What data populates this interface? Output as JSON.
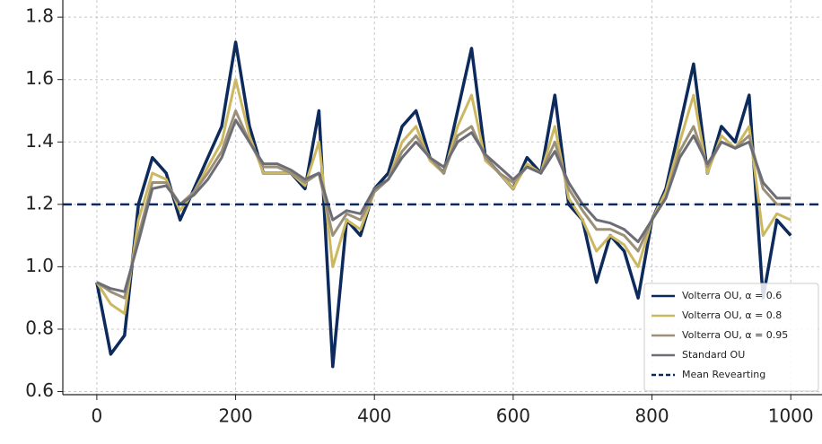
{
  "chart_data": {
    "type": "line",
    "x": [
      0,
      20,
      40,
      60,
      80,
      100,
      120,
      140,
      160,
      180,
      200,
      220,
      240,
      260,
      280,
      300,
      320,
      340,
      360,
      380,
      400,
      420,
      440,
      460,
      480,
      500,
      520,
      540,
      560,
      580,
      600,
      620,
      640,
      660,
      680,
      700,
      720,
      740,
      760,
      780,
      800,
      820,
      840,
      860,
      880,
      900,
      920,
      940,
      960,
      980,
      1000
    ],
    "series": [
      {
        "name": "Volterra OU, α = 0.6",
        "color": "#0d2a5c",
        "values": [
          0.95,
          0.72,
          0.78,
          1.2,
          1.35,
          1.3,
          1.15,
          1.25,
          1.35,
          1.45,
          1.72,
          1.45,
          1.3,
          1.3,
          1.3,
          1.25,
          1.5,
          0.68,
          1.15,
          1.1,
          1.25,
          1.3,
          1.45,
          1.5,
          1.35,
          1.3,
          1.5,
          1.7,
          1.35,
          1.3,
          1.25,
          1.35,
          1.3,
          1.55,
          1.2,
          1.15,
          0.95,
          1.1,
          1.05,
          0.9,
          1.15,
          1.25,
          1.45,
          1.65,
          1.3,
          1.45,
          1.4,
          1.55,
          0.9,
          1.15,
          1.1
        ]
      },
      {
        "name": "Volterra OU, α = 0.8",
        "color": "#cdb862",
        "values": [
          0.95,
          0.88,
          0.85,
          1.15,
          1.3,
          1.28,
          1.18,
          1.24,
          1.32,
          1.4,
          1.6,
          1.42,
          1.3,
          1.3,
          1.3,
          1.26,
          1.4,
          1.0,
          1.15,
          1.12,
          1.24,
          1.28,
          1.4,
          1.45,
          1.34,
          1.3,
          1.45,
          1.55,
          1.34,
          1.3,
          1.25,
          1.33,
          1.3,
          1.45,
          1.22,
          1.15,
          1.05,
          1.1,
          1.07,
          1.0,
          1.15,
          1.24,
          1.4,
          1.55,
          1.3,
          1.42,
          1.38,
          1.45,
          1.1,
          1.17,
          1.15
        ]
      },
      {
        "name": "Volterra OU, α = 0.95",
        "color": "#9c9078",
        "values": [
          0.95,
          0.92,
          0.9,
          1.1,
          1.27,
          1.27,
          1.2,
          1.24,
          1.3,
          1.37,
          1.5,
          1.4,
          1.32,
          1.32,
          1.3,
          1.27,
          1.3,
          1.1,
          1.17,
          1.15,
          1.24,
          1.28,
          1.37,
          1.42,
          1.35,
          1.3,
          1.42,
          1.45,
          1.35,
          1.3,
          1.27,
          1.32,
          1.3,
          1.4,
          1.25,
          1.18,
          1.12,
          1.12,
          1.1,
          1.05,
          1.15,
          1.22,
          1.37,
          1.45,
          1.32,
          1.4,
          1.38,
          1.42,
          1.25,
          1.2,
          1.2
        ]
      },
      {
        "name": "Standard OU",
        "color": "#6d6d76",
        "values": [
          0.95,
          0.93,
          0.92,
          1.08,
          1.25,
          1.26,
          1.2,
          1.23,
          1.28,
          1.35,
          1.47,
          1.4,
          1.33,
          1.33,
          1.31,
          1.28,
          1.3,
          1.15,
          1.18,
          1.17,
          1.25,
          1.28,
          1.35,
          1.4,
          1.35,
          1.32,
          1.4,
          1.43,
          1.36,
          1.32,
          1.28,
          1.32,
          1.3,
          1.37,
          1.27,
          1.2,
          1.15,
          1.14,
          1.12,
          1.08,
          1.15,
          1.22,
          1.35,
          1.42,
          1.33,
          1.4,
          1.38,
          1.4,
          1.27,
          1.22,
          1.22
        ]
      }
    ],
    "mean_line": {
      "name": "Mean Revearting",
      "value": 1.2,
      "color": "#0d2a5c"
    },
    "xlim": [
      -49,
      1045
    ],
    "ylim": [
      0.59,
      1.855
    ],
    "xticks": [
      0,
      200,
      400,
      600,
      800,
      1000
    ],
    "yticks": [
      0.6,
      0.8,
      {
        "value": 1,
        "label": "1.0"
      },
      1.2,
      1.4,
      1.6,
      1.8
    ],
    "grid": true,
    "legend": "lower right"
  }
}
